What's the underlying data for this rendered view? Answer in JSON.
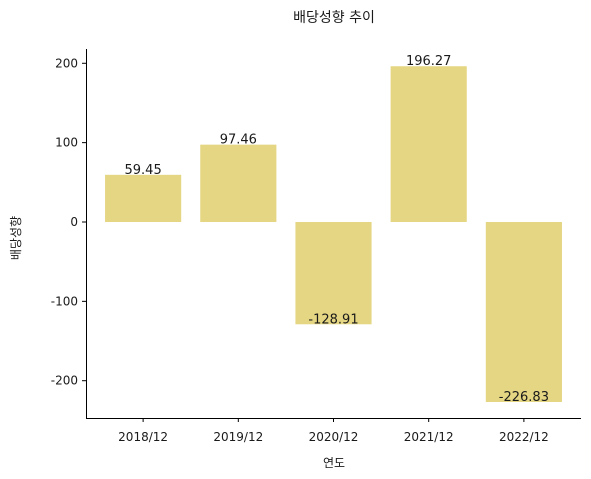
{
  "chart_data": {
    "type": "bar",
    "title": "배당성향 추이",
    "xlabel": "연도",
    "ylabel": "배당성향",
    "categories": [
      "2018/12",
      "2019/12",
      "2020/12",
      "2021/12",
      "2022/12"
    ],
    "values": [
      59.45,
      97.46,
      -128.91,
      196.27,
      -226.83
    ],
    "value_labels": [
      "59.45",
      "97.46",
      "-128.91",
      "196.27",
      "-226.83"
    ],
    "yticks": [
      200,
      100,
      0,
      -100,
      -200
    ],
    "ytick_labels": [
      "200",
      "100",
      "0",
      "-100",
      "-200"
    ],
    "ylim": [
      -247,
      218
    ],
    "grid": false,
    "bar_color": "#e5d683"
  }
}
